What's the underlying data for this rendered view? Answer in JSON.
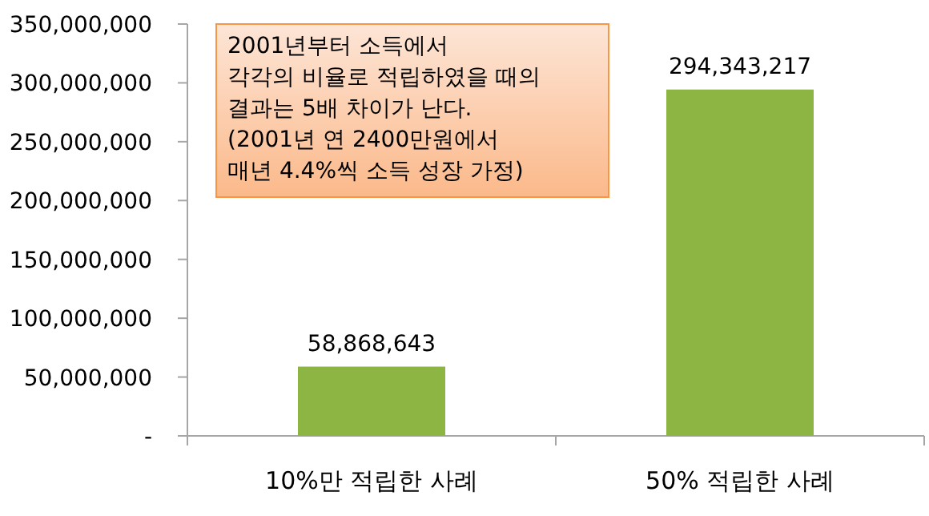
{
  "chart_data": {
    "type": "bar",
    "categories": [
      "10%만 적립한 사례",
      "50% 적립한 사례"
    ],
    "values": [
      58868643,
      294343217
    ],
    "value_labels": [
      "58,868,643",
      "294,343,217"
    ],
    "color": "#8cb543",
    "ylim": [
      0,
      350000000
    ],
    "yticks": [
      {
        "value": 0,
        "label": "-"
      },
      {
        "value": 50000000,
        "label": "50,000,000"
      },
      {
        "value": 100000000,
        "label": "100,000,000"
      },
      {
        "value": 150000000,
        "label": "150,000,000"
      },
      {
        "value": 200000000,
        "label": "200,000,000"
      },
      {
        "value": 250000000,
        "label": "250,000,000"
      },
      {
        "value": 300000000,
        "label": "300,000,000"
      },
      {
        "value": 350000000,
        "label": "350,000,000"
      }
    ],
    "annotations": [
      "2001년부터 소득에서\n각각의 비율로 적립하였을 때의\n결과는 5배 차이가 난다.\n(2001년 연 2400만원에서\n매년 4.4%씩 소득 성장 가정)"
    ],
    "grid": false
  }
}
